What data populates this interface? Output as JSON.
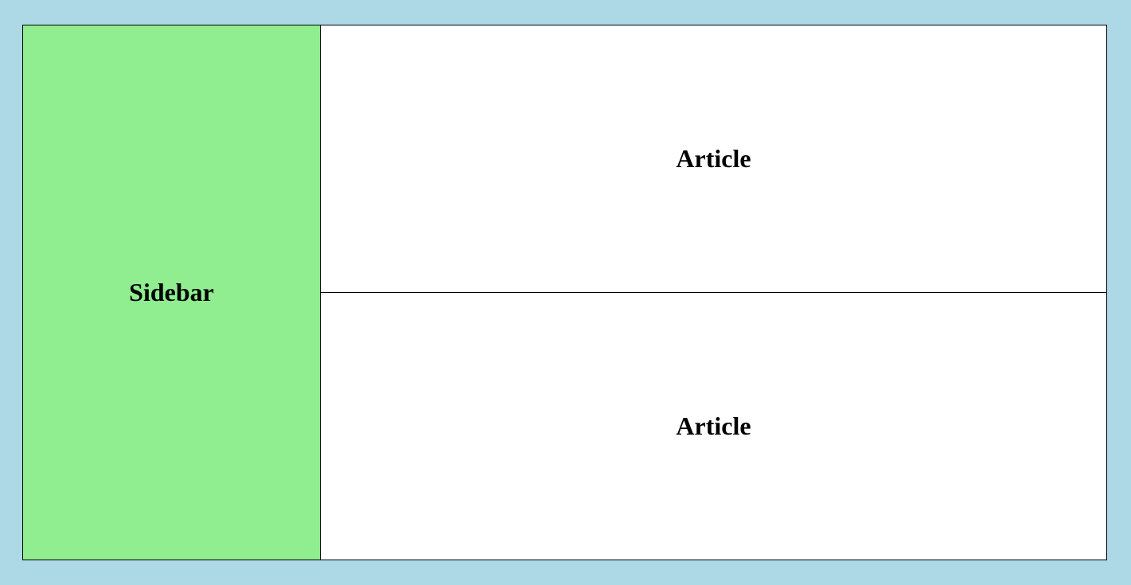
{
  "colors": {
    "page_background": "#add8e6",
    "sidebar_background": "#90ee90",
    "article_background": "#ffffff",
    "border": "#000000"
  },
  "sidebar": {
    "label": "Sidebar"
  },
  "articles": [
    {
      "label": "Article"
    },
    {
      "label": "Article"
    }
  ]
}
